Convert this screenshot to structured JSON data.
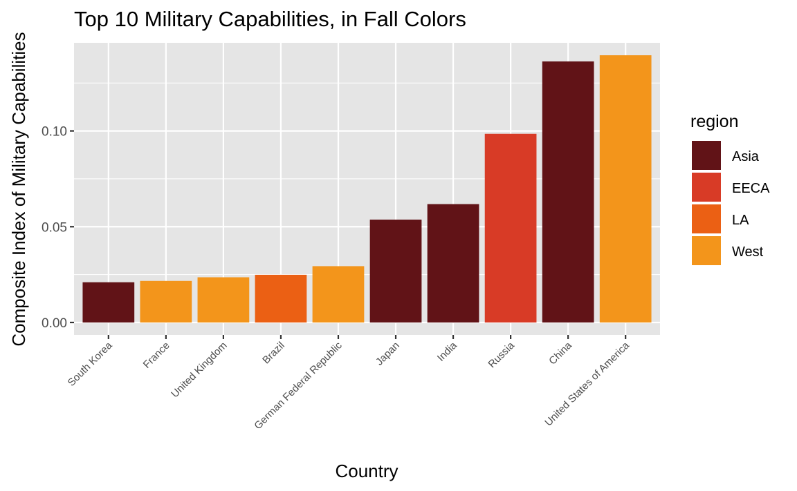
{
  "chart_data": {
    "type": "bar",
    "title": "Top 10 Military Capabilities, in Fall Colors",
    "xlabel": "Country",
    "ylabel": "Composite Index of Military Capabilities",
    "categories": [
      "South Korea",
      "France",
      "United Kingdom",
      "Brazil",
      "German Federal Republic",
      "Japan",
      "India",
      "Russia",
      "China",
      "United States of America"
    ],
    "values": [
      0.021,
      0.0217,
      0.0236,
      0.0249,
      0.0294,
      0.0537,
      0.0618,
      0.0985,
      0.1363,
      0.1395
    ],
    "regions": [
      "Asia",
      "West",
      "West",
      "LA",
      "West",
      "Asia",
      "Asia",
      "EECA",
      "Asia",
      "West"
    ],
    "ylim": [
      -0.0065,
      0.146
    ],
    "yticks": [
      0.0,
      0.05,
      0.1
    ],
    "ytick_labels": [
      "0.00",
      "0.05",
      "0.10"
    ],
    "grid": true,
    "legend": {
      "title": "region",
      "placement": "right",
      "entries": [
        {
          "label": "Asia",
          "color": "#611317"
        },
        {
          "label": "EECA",
          "color": "#D83B26"
        },
        {
          "label": "LA",
          "color": "#EB6014"
        },
        {
          "label": "West",
          "color": "#F3951B"
        }
      ]
    },
    "colors": {
      "panel_background": "#E5E5E5",
      "gridline": "#FFFFFF",
      "tick_text": "#4D4D4D"
    }
  }
}
